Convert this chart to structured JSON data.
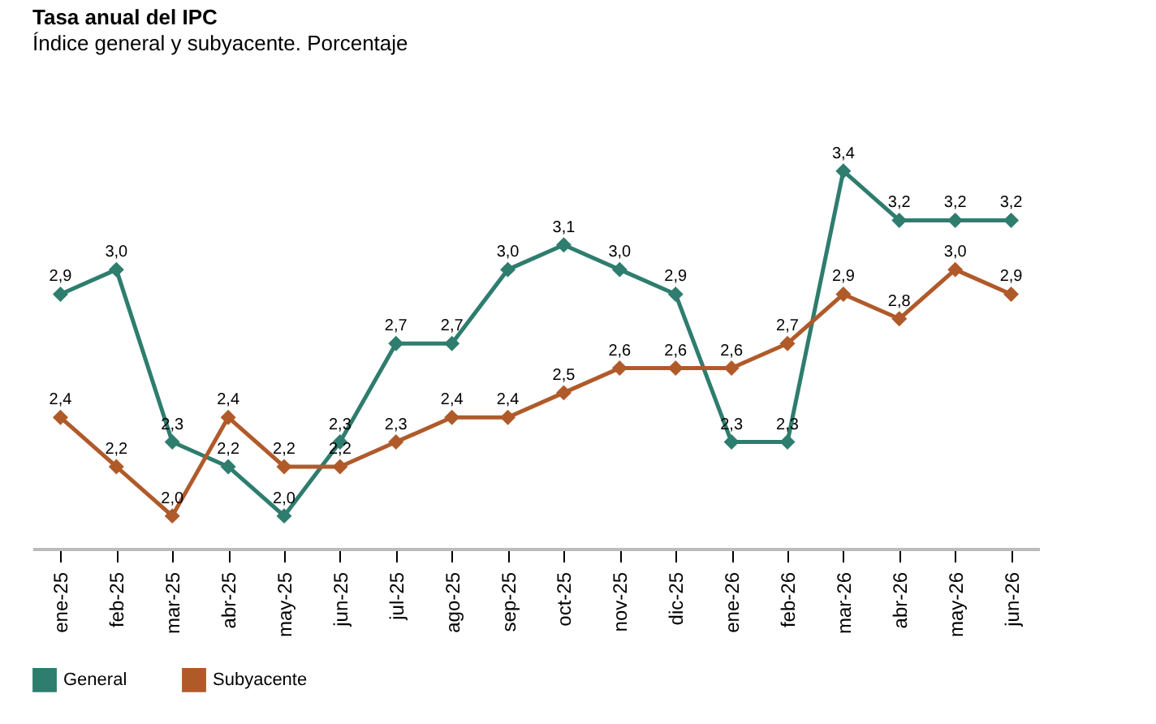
{
  "chart_data": {
    "type": "line",
    "title": "Tasa anual del IPC",
    "subtitle": "Índice general y subyacente. Porcentaje",
    "categories": [
      "ene-25",
      "feb-25",
      "mar-25",
      "abr-25",
      "may-25",
      "jun-25",
      "jul-25",
      "ago-25",
      "sep-25",
      "oct-25",
      "nov-25",
      "dic-25",
      "ene-26",
      "feb-26",
      "mar-26",
      "abr-26",
      "may-26",
      "jun-26"
    ],
    "series": [
      {
        "name": "General",
        "color": "#2e7d6e",
        "values": [
          2.9,
          3.0,
          2.3,
          2.2,
          2.0,
          2.3,
          2.7,
          2.7,
          3.0,
          3.1,
          3.0,
          2.9,
          2.3,
          2.3,
          3.4,
          3.2,
          3.2,
          3.2
        ],
        "value_labels": [
          "2,9",
          "3,0",
          "2,3",
          "2,2",
          "2,0",
          "2,3",
          "2,7",
          "2,7",
          "3,0",
          "3,1",
          "3,0",
          "2,9",
          "2,3",
          "2,3",
          "3,4",
          "3,2",
          "3,2",
          "3,2"
        ]
      },
      {
        "name": "Subyacente",
        "color": "#b05a2a",
        "values": [
          2.4,
          2.2,
          2.0,
          2.4,
          2.2,
          2.2,
          2.3,
          2.4,
          2.4,
          2.5,
          2.6,
          2.6,
          2.6,
          2.7,
          2.9,
          2.8,
          3.0,
          2.9
        ],
        "value_labels": [
          "2,4",
          "2,2",
          "2,0",
          "2,4",
          "2,2",
          "2,2",
          "2,3",
          "2,4",
          "2,4",
          "2,5",
          "2,6",
          "2,6",
          "2,6",
          "2,7",
          "2,9",
          "2,8",
          "3,0",
          "2,9"
        ]
      }
    ],
    "marker": "diamond",
    "line_style": "solid",
    "legend": "bottom",
    "grid": false,
    "tick_labels": "x"
  }
}
